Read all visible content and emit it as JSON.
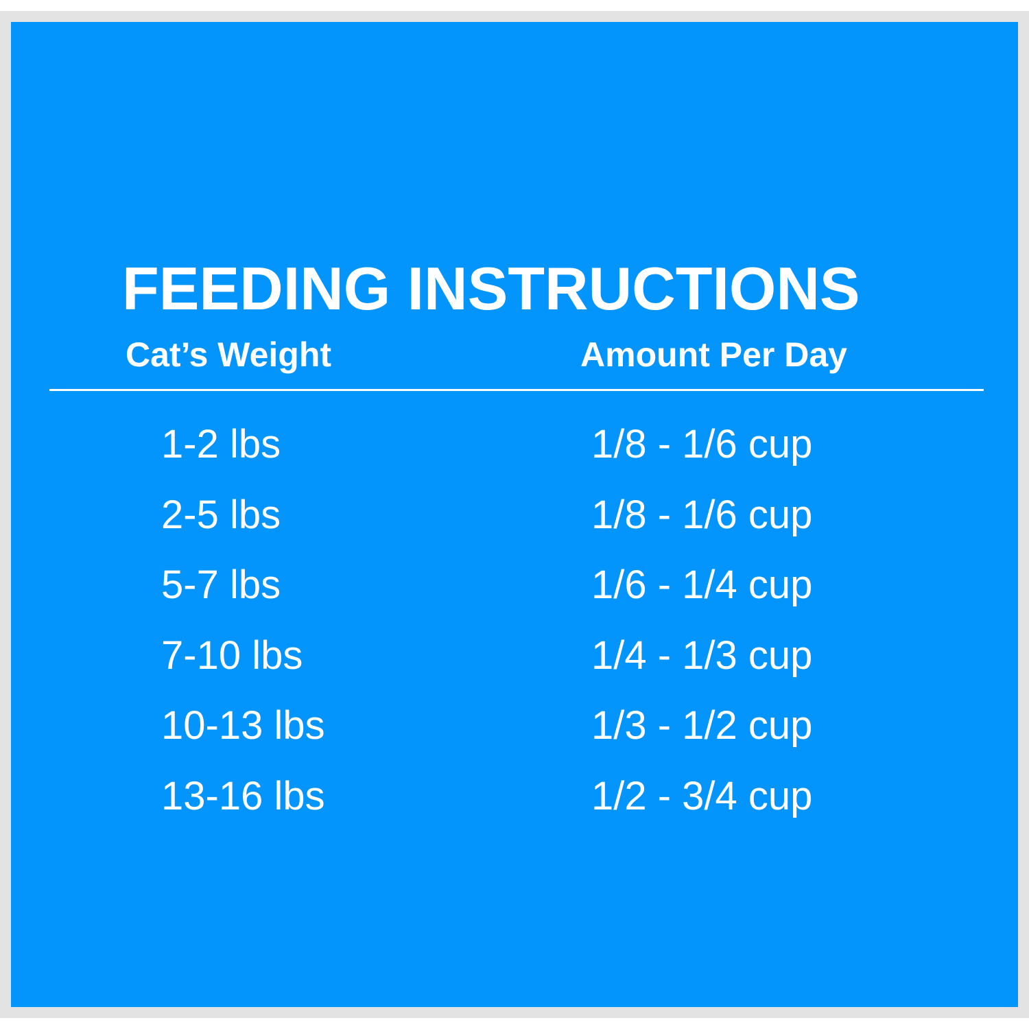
{
  "title": "FEEDING INSTRUCTIONS",
  "table": {
    "header": [
      "Cat’s Weight",
      "Amount Per Day"
    ],
    "rows": [
      [
        "1-2 lbs",
        "1/8 - 1/6 cup"
      ],
      [
        "2-5 lbs",
        "1/8 - 1/6 cup"
      ],
      [
        "5-7 lbs",
        "1/6 - 1/4 cup"
      ],
      [
        "7-10 lbs",
        "1/4 - 1/3 cup"
      ],
      [
        "10-13 lbs",
        "1/3 - 1/2 cup"
      ],
      [
        "13-16 lbs",
        "1/2 - 3/4 cup"
      ]
    ]
  }
}
